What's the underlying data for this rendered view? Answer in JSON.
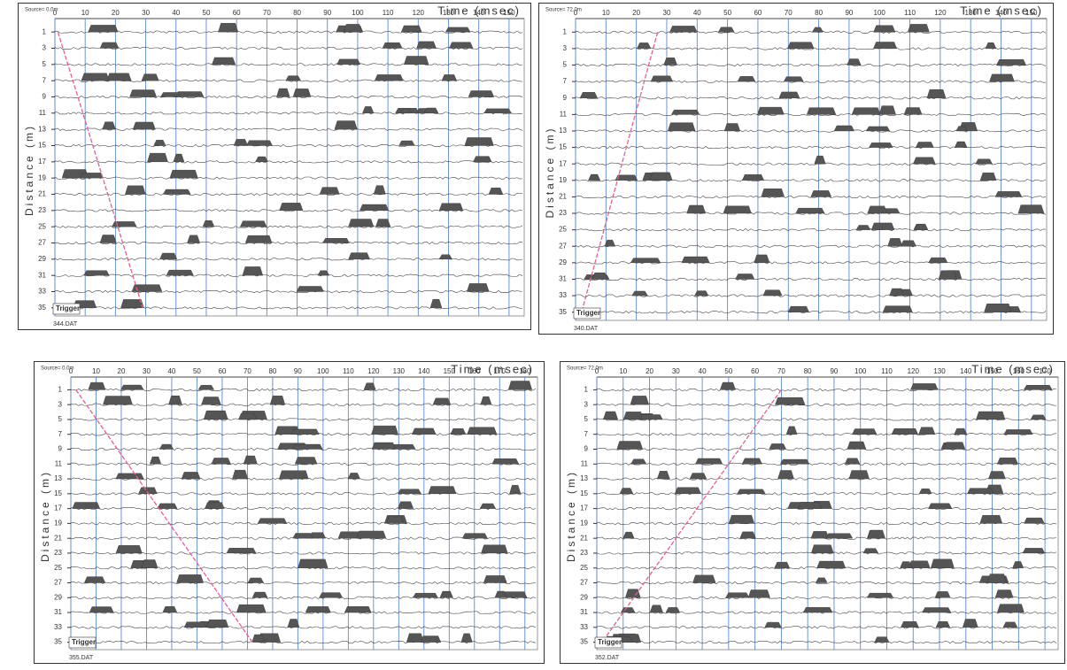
{
  "chart_data": [
    {
      "type": "seismogram",
      "source": "Source= 0.0m",
      "title": "Time (msec)",
      "ylabel": "Distance (m)",
      "trigger": "Trigger",
      "file": "344.DAT",
      "xlim": [
        0,
        155
      ],
      "xticks": [
        0,
        10,
        20,
        30,
        40,
        50,
        60,
        70,
        80,
        90,
        100,
        110,
        120,
        130,
        140,
        150
      ],
      "ylim": [
        0,
        36
      ],
      "y_inverted": true,
      "yticks": [
        1,
        3,
        5,
        7,
        9,
        11,
        13,
        15,
        17,
        19,
        21,
        23,
        25,
        27,
        29,
        31,
        33,
        35
      ],
      "grid": true,
      "grid_color": "#5b8ad6",
      "series": [
        {
          "name": "First break",
          "color": "#e0609a",
          "x": [
            1,
            29
          ],
          "values": [
            1,
            35
          ]
        }
      ]
    },
    {
      "type": "seismogram",
      "source": "Source= 72.0m",
      "title": "Time (msec)",
      "ylabel": "Distance (m)",
      "trigger": "Trigger",
      "file": "340.DAT",
      "xlim": [
        0,
        155
      ],
      "xticks": [
        0,
        10,
        20,
        30,
        40,
        50,
        60,
        70,
        80,
        90,
        100,
        110,
        120,
        130,
        140,
        150
      ],
      "ylim": [
        0,
        36
      ],
      "y_inverted": true,
      "yticks": [
        1,
        3,
        5,
        7,
        9,
        11,
        13,
        15,
        17,
        19,
        21,
        23,
        25,
        27,
        29,
        31,
        33,
        35
      ],
      "grid": true,
      "grid_color": "#5b8ad6",
      "series": [
        {
          "name": "First break",
          "color": "#e0609a",
          "x": [
            27,
            2
          ],
          "values": [
            1,
            35
          ]
        }
      ]
    },
    {
      "type": "seismogram",
      "source": "Source= 0.0m",
      "title": "Time (msec)",
      "ylabel": "Distance (m)",
      "trigger": "Trigger",
      "file": "355.DAT",
      "xlim": [
        0,
        185
      ],
      "xticks": [
        0,
        10,
        20,
        30,
        40,
        50,
        60,
        70,
        80,
        90,
        100,
        110,
        120,
        130,
        140,
        150,
        160,
        170,
        180
      ],
      "ylim": [
        0,
        36
      ],
      "y_inverted": true,
      "yticks": [
        1,
        3,
        5,
        7,
        9,
        11,
        13,
        15,
        17,
        19,
        21,
        23,
        25,
        27,
        29,
        31,
        33,
        35
      ],
      "grid": true,
      "grid_color": "#5b8ad6",
      "series": [
        {
          "name": "First break",
          "color": "#e0609a",
          "x": [
            2,
            72
          ],
          "values": [
            1,
            35
          ]
        }
      ]
    },
    {
      "type": "seismogram",
      "source": "Source= 72.0m",
      "title": "Time (msec)",
      "ylabel": "Distance (m)",
      "trigger": "Trigger",
      "file": "352.DAT",
      "xlim": [
        0,
        175
      ],
      "xticks": [
        0,
        10,
        20,
        30,
        40,
        50,
        60,
        70,
        80,
        90,
        100,
        110,
        120,
        130,
        140,
        150,
        160,
        170
      ],
      "ylim": [
        0,
        36
      ],
      "y_inverted": true,
      "yticks": [
        1,
        3,
        5,
        7,
        9,
        11,
        13,
        15,
        17,
        19,
        21,
        23,
        25,
        27,
        29,
        31,
        33,
        35
      ],
      "grid": true,
      "grid_color": "#5b8ad6",
      "series": [
        {
          "name": "First break",
          "color": "#e0609a",
          "x": [
            70,
            2
          ],
          "values": [
            1,
            35
          ]
        }
      ]
    }
  ]
}
